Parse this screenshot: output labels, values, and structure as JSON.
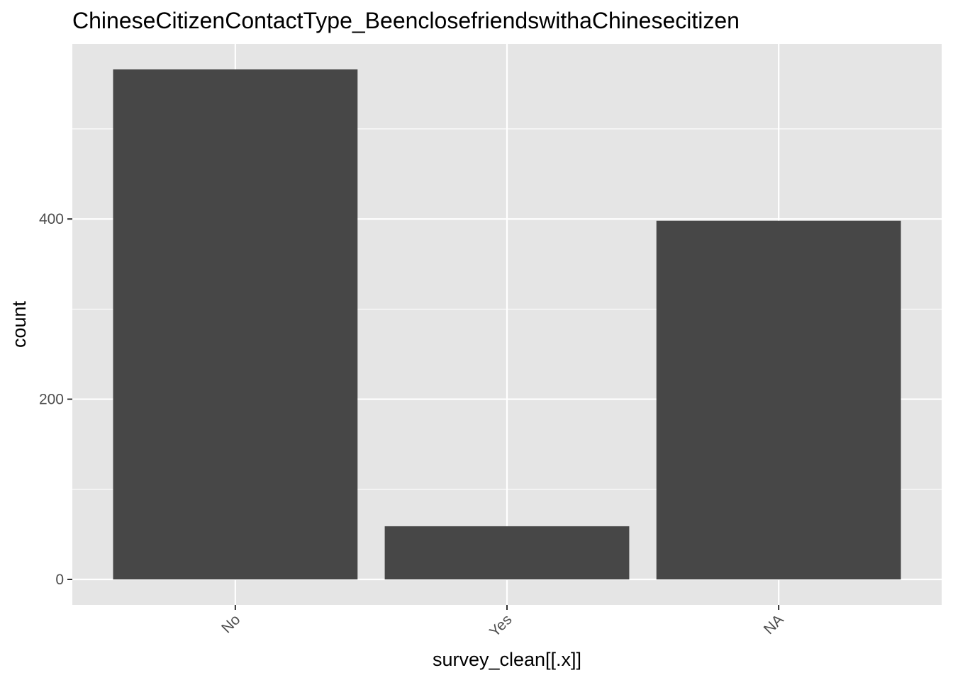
{
  "chart_data": {
    "type": "bar",
    "title": "ChineseCitizenContactType_BeenclosefriendswithaChinesecitizen",
    "xlabel": "survey_clean[[.x]]",
    "ylabel": "count",
    "categories": [
      "No",
      "Yes",
      "NA"
    ],
    "values": [
      566,
      59,
      398
    ],
    "ylim": [
      -28.3,
      594.3
    ],
    "yticks": [
      0,
      200,
      400
    ],
    "grid": true,
    "colors": {
      "panel": "#e5e5e5",
      "grid": "#ffffff",
      "bar": "#474747"
    }
  }
}
